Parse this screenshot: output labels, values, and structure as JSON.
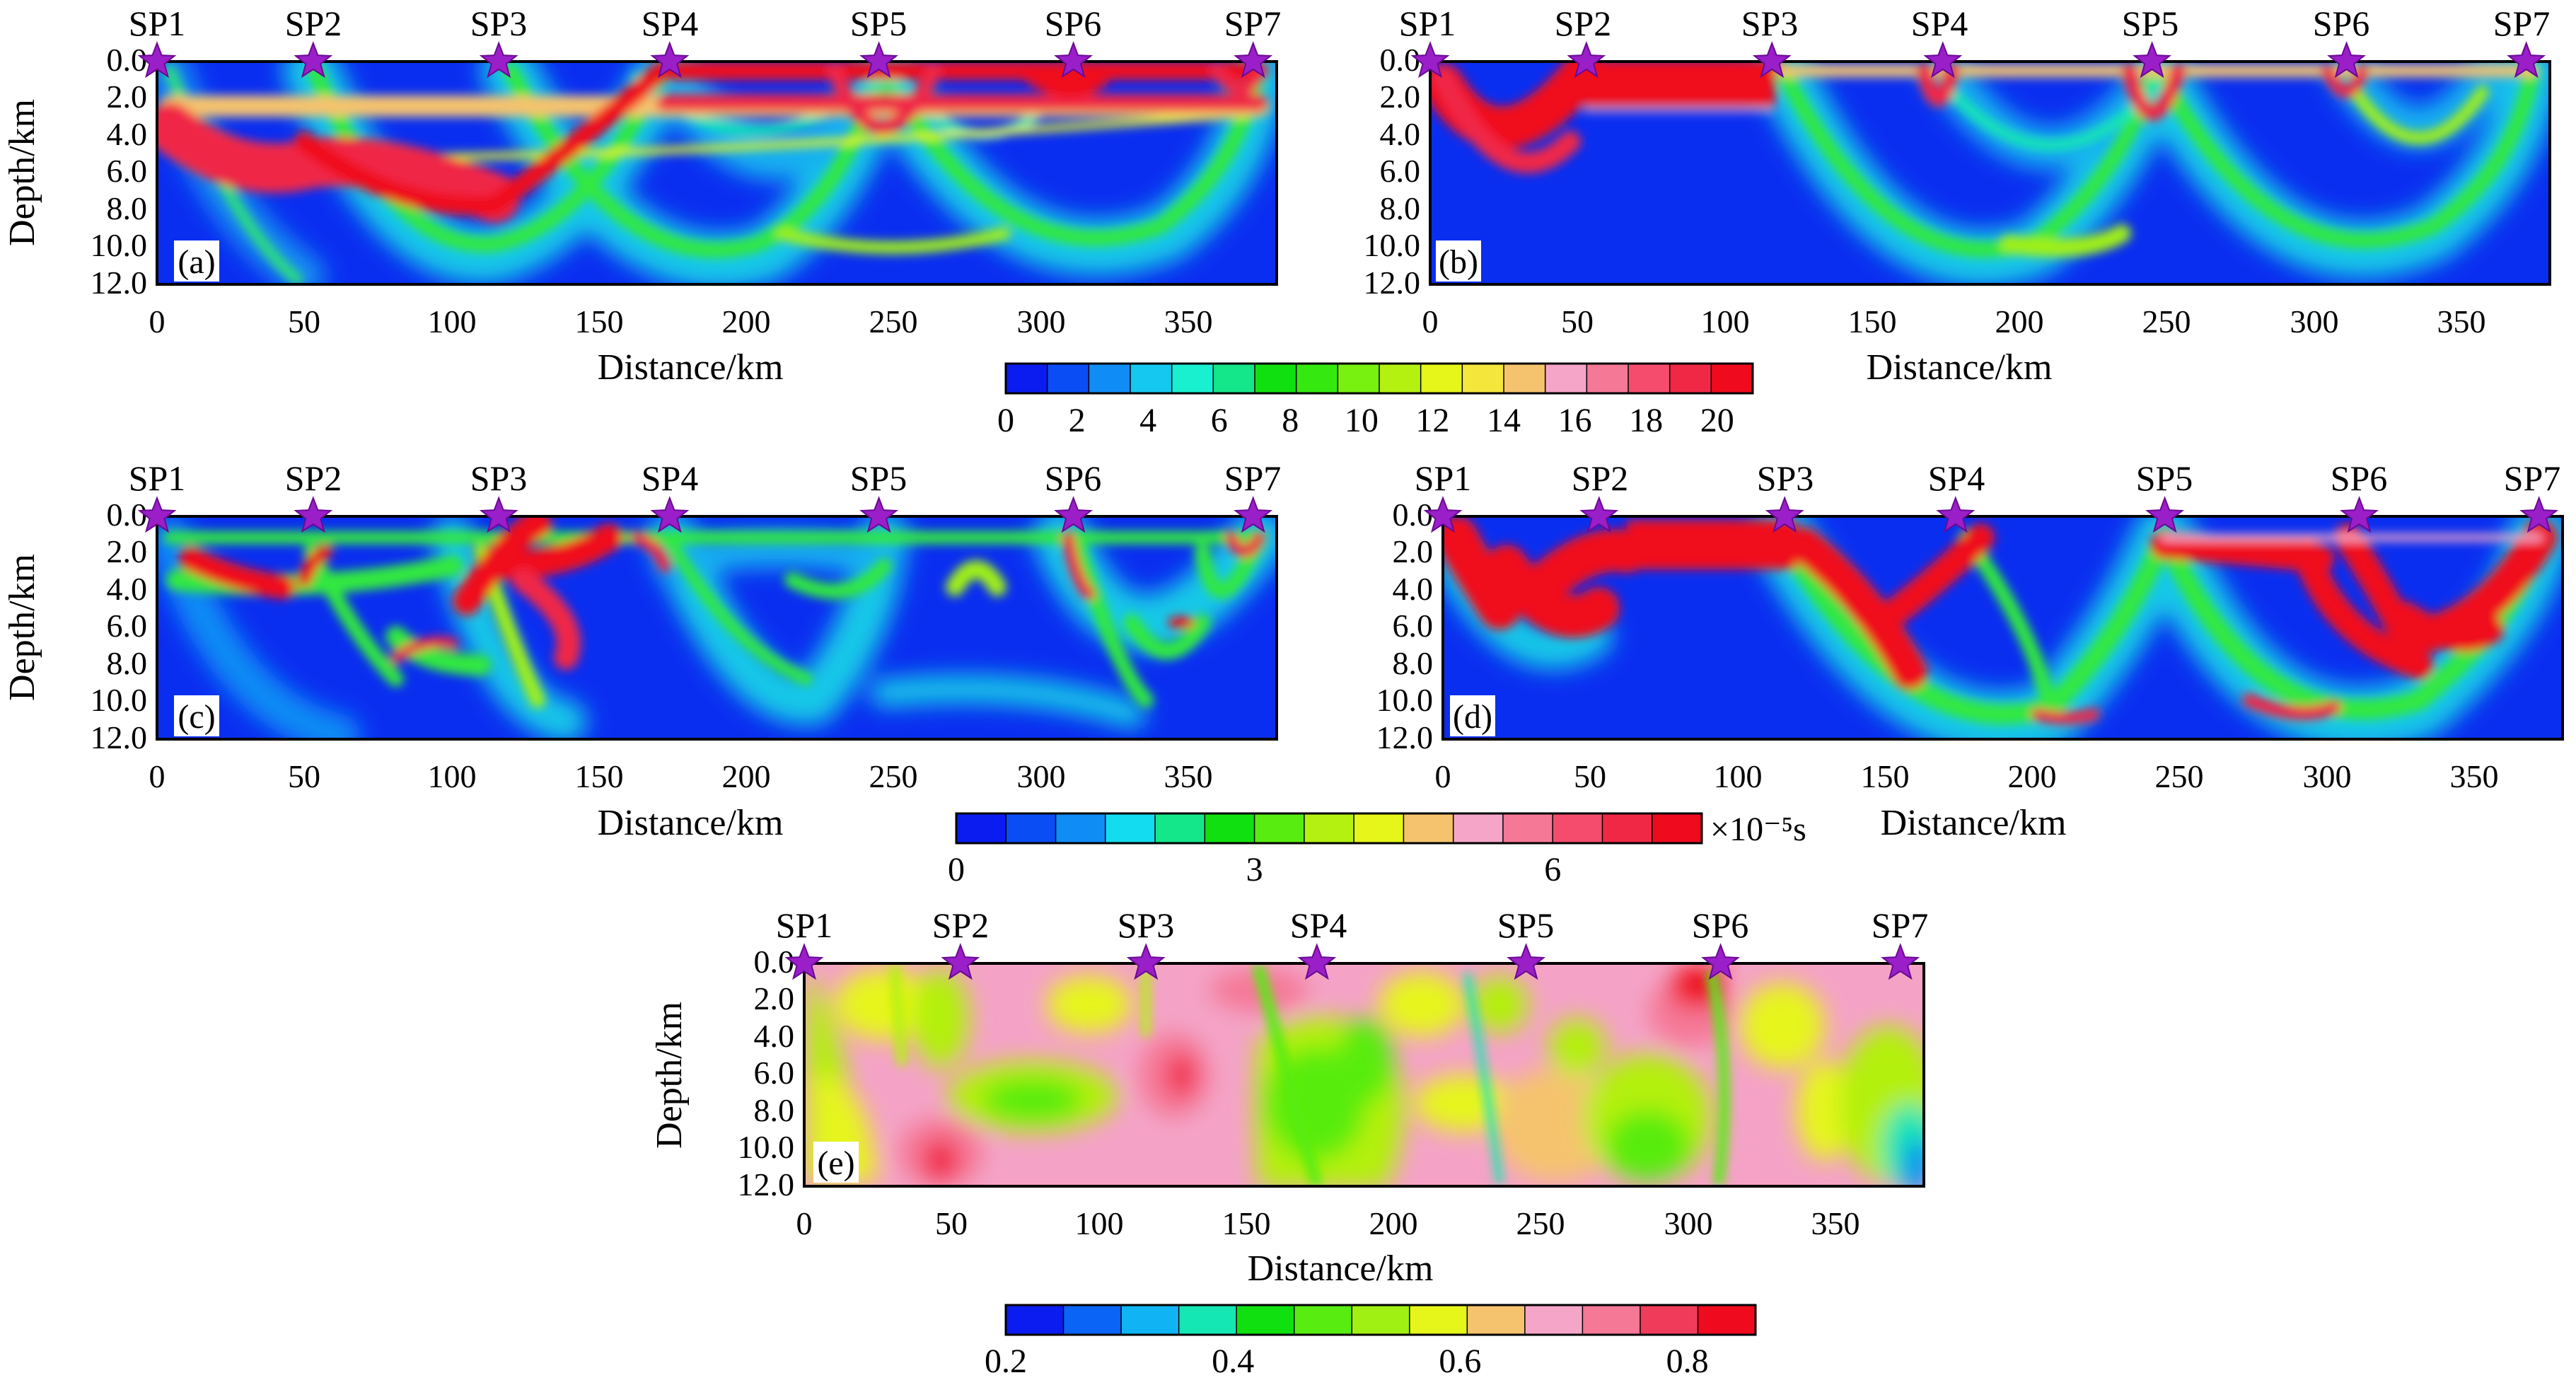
{
  "figure": {
    "shot_points": [
      "SP1",
      "SP2",
      "SP3",
      "SP4",
      "SP5",
      "SP6",
      "SP7"
    ],
    "unit_suffix": "×10⁻⁵s"
  },
  "chart_data": [
    {
      "type": "heatmap",
      "panel": "(a)",
      "xlabel": "Distance/km",
      "ylabel": "Depth/km",
      "xlim": [
        0,
        380
      ],
      "ylim": [
        12,
        0
      ],
      "xticks": [
        "0",
        "50",
        "100",
        "150",
        "200",
        "250",
        "300",
        "350"
      ],
      "yticks": [
        "0.0",
        "2.0",
        "4.0",
        "6.0",
        "8.0",
        "10.0",
        "12.0"
      ],
      "shot_points_km": [
        0,
        53,
        116,
        174,
        245,
        311,
        372
      ],
      "colorbar": "ray_count",
      "background": "#0a2ef0"
    },
    {
      "type": "heatmap",
      "panel": "(b)",
      "xlabel": "Distance/km",
      "ylabel": "Depth/km",
      "xlim": [
        0,
        380
      ],
      "ylim": [
        12,
        0
      ],
      "xticks": [
        "0",
        "50",
        "100",
        "150",
        "200",
        "250",
        "300",
        "350"
      ],
      "yticks": [
        "0.0",
        "2.0",
        "4.0",
        "6.0",
        "8.0",
        "10.0",
        "12.0"
      ],
      "shot_points_km": [
        0,
        53,
        116,
        174,
        245,
        311,
        372
      ],
      "colorbar": "ray_count",
      "background": "#0a2ef0"
    },
    {
      "type": "heatmap",
      "panel": "(c)",
      "xlabel": "Distance/km",
      "ylabel": "Depth/km",
      "xlim": [
        0,
        380
      ],
      "ylim": [
        12,
        0
      ],
      "xticks": [
        "0",
        "50",
        "100",
        "150",
        "200",
        "250",
        "300",
        "350"
      ],
      "yticks": [
        "0.0",
        "2.0",
        "4.0",
        "6.0",
        "8.0",
        "10.0",
        "12.0"
      ],
      "shot_points_km": [
        0,
        53,
        116,
        174,
        245,
        311,
        372
      ],
      "colorbar": "time",
      "background": "#0a2ef0"
    },
    {
      "type": "heatmap",
      "panel": "(d)",
      "xlabel": "Distance/km",
      "ylabel": "Depth/km",
      "xlim": [
        0,
        380
      ],
      "ylim": [
        12,
        0
      ],
      "xticks": [
        "0",
        "50",
        "100",
        "150",
        "200",
        "250",
        "300",
        "350"
      ],
      "yticks": [
        "0.0",
        "2.0",
        "4.0",
        "6.0",
        "8.0",
        "10.0",
        "12.0"
      ],
      "shot_points_km": [
        0,
        53,
        116,
        174,
        245,
        311,
        372
      ],
      "colorbar": "time",
      "background": "#0a2ef0"
    },
    {
      "type": "heatmap",
      "panel": "(e)",
      "xlabel": "Distance/km",
      "ylabel": "Depth/km",
      "xlim": [
        0,
        380
      ],
      "ylim": [
        12,
        0
      ],
      "xticks": [
        "0",
        "50",
        "100",
        "150",
        "200",
        "250",
        "300",
        "350"
      ],
      "yticks": [
        "0.0",
        "2.0",
        "4.0",
        "6.0",
        "8.0",
        "10.0",
        "12.0"
      ],
      "shot_points_km": [
        0,
        53,
        116,
        174,
        245,
        311,
        372
      ],
      "colorbar": "resolution",
      "background": "#f4a3c6"
    }
  ],
  "colorbars": {
    "ray_count": {
      "ticks": [
        "0",
        "2",
        "4",
        "6",
        "8",
        "10",
        "12",
        "14",
        "16",
        "18",
        "20"
      ],
      "tick_values": [
        0,
        2,
        4,
        6,
        8,
        10,
        12,
        14,
        16,
        18,
        20
      ],
      "range": [
        0,
        21
      ],
      "colors": [
        "#0a1cf0",
        "#0a4df5",
        "#108cf5",
        "#14c8f0",
        "#18f0d0",
        "#14e68a",
        "#10e010",
        "#34e810",
        "#78f010",
        "#b4f010",
        "#e6f51a",
        "#f5e63c",
        "#f5c36e",
        "#f5a5c8",
        "#f57896",
        "#f54c6e",
        "#f02846",
        "#f00a1e"
      ]
    },
    "time": {
      "ticks": [
        "0",
        "3",
        "6"
      ],
      "tick_values": [
        0,
        3,
        6
      ],
      "range": [
        0,
        7.5
      ],
      "colors": [
        "#0a1cf0",
        "#0a4df5",
        "#108cf5",
        "#14dcf0",
        "#14e68a",
        "#10e010",
        "#58ec10",
        "#b4f010",
        "#e6f51a",
        "#f5c36e",
        "#f5a5c8",
        "#f57896",
        "#f54c6e",
        "#f02846",
        "#f00a1e"
      ]
    },
    "resolution": {
      "ticks": [
        "0.2",
        "0.4",
        "0.6",
        "0.8"
      ],
      "tick_values": [
        0.2,
        0.4,
        0.6,
        0.8
      ],
      "range": [
        0.2,
        0.86
      ],
      "colors": [
        "#0a1cf0",
        "#0a64f5",
        "#10b4f5",
        "#14e6b4",
        "#10e010",
        "#58ec10",
        "#a0f014",
        "#e6f51a",
        "#f5c36e",
        "#f5a5c8",
        "#f57896",
        "#f03c5a",
        "#f00a1e"
      ]
    }
  }
}
